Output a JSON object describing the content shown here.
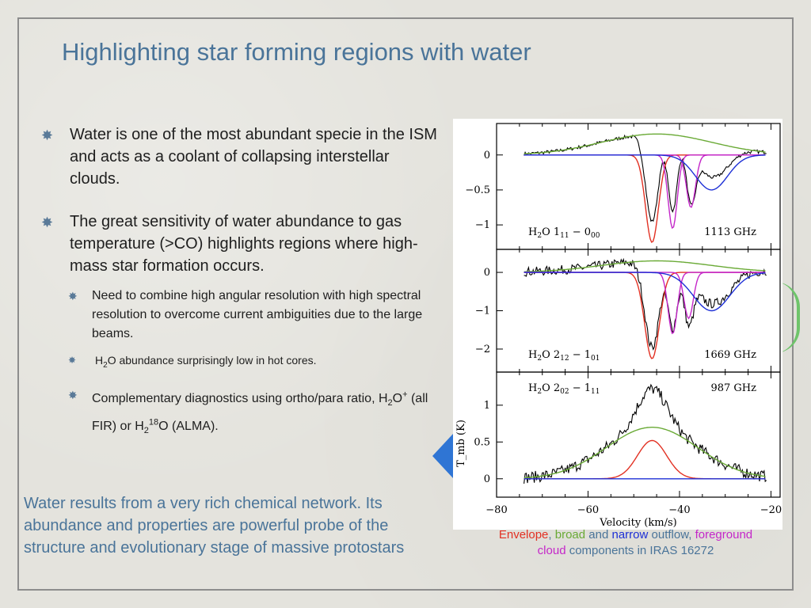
{
  "title": "Highlighting star forming regions with water",
  "bullets": {
    "b1": "Water is one of the most abundant specie in the ISM and acts as a coolant of collapsing interstellar clouds.",
    "b2": "The great sensitivity of water abundance to gas temperature (>CO) highlights regions where high-mass star formation occurs.",
    "b2_1": "Need to combine high angular resolution with high spectral resolution to overcome current ambiguities due to the large beams.",
    "b2_1_1": {
      "h": "H",
      "sub2": "2",
      "rest": "O abundance surprisingly low in hot cores."
    },
    "b2_2": {
      "p1": "Complementary diagnostics using ortho/para ratio, H",
      "sub2": "2",
      "p2": "O",
      "sup": "+",
      "p3": " (all FIR) or H",
      "sub2b": "2",
      "sup18": "18",
      "p4": "O (ALMA)."
    }
  },
  "summary": "Water results from a very rich chemical network. Its abundance and properties are powerful probe of the structure and evolutionary stage of massive protostars",
  "caption": {
    "envelope": "Envelope",
    "comma": ", ",
    "broad": "broad",
    "and": " and ",
    "narrow": "narrow",
    "outflow": " outflow,",
    "fg": "foreground cloud",
    "rest": " components in IRAS 16272"
  },
  "colors": {
    "accent": "#4a7499",
    "envelope": "#e23123",
    "broad": "#6aaa36",
    "narrow": "#1d2fd6",
    "foreground": "#c427c9"
  },
  "chart_data": {
    "type": "line",
    "xlabel": "Velocity (km/s)",
    "ylabel": "T_mb (K)",
    "xlim": [
      -80,
      -18
    ],
    "xticks": [
      "−80",
      "−60",
      "−40",
      "−20"
    ],
    "panels": [
      {
        "line": "H₂O 1₁₁ − 0₀₀",
        "line_label": {
          "base": "H",
          "s1": "2",
          "m": "O 1",
          "s2": "11",
          "dash": " − 0",
          "s3": "00"
        },
        "freq": "1113 GHz",
        "ylim": [
          -1.35,
          0.45
        ],
        "yticks": [
          {
            "v": 0,
            "t": "0"
          },
          {
            "v": -0.5,
            "t": "−0.5"
          },
          {
            "v": -1,
            "t": "−1"
          }
        ],
        "series": [
          {
            "type": "observed",
            "baseline": 0,
            "noise": 0.025
          },
          {
            "color": "#6aaa36",
            "peak": 0.3,
            "center": -45,
            "width": 12
          },
          {
            "color": "#e23123",
            "peak": -1.25,
            "center": -46,
            "width": 1.4
          },
          {
            "color": "#c427c9",
            "peak": -1.05,
            "center": -41.5,
            "width": 1.0
          },
          {
            "color": "#c427c9",
            "peak": -0.75,
            "center": -37.5,
            "width": 1.0
          },
          {
            "color": "#1d2fd6",
            "peak": -0.5,
            "center": -33,
            "width": 3.5
          }
        ]
      },
      {
        "line": "H₂O 2₁₂ − 1₀₁",
        "line_label": {
          "base": "H",
          "s1": "2",
          "m": "O 2",
          "s2": "12",
          "dash": " − 1",
          "s3": "01"
        },
        "freq": "1669 GHz",
        "ylim": [
          -2.6,
          0.6
        ],
        "yticks": [
          {
            "v": 0,
            "t": "0"
          },
          {
            "v": -1,
            "t": "−1"
          },
          {
            "v": -2,
            "t": "−2"
          }
        ],
        "series": [
          {
            "type": "observed",
            "baseline": 0,
            "noise": 0.12
          },
          {
            "color": "#6aaa36",
            "peak": 0.3,
            "center": -45,
            "width": 12
          },
          {
            "color": "#e23123",
            "peak": -2.25,
            "center": -46,
            "width": 1.6
          },
          {
            "color": "#c427c9",
            "peak": -1.6,
            "center": -41.5,
            "width": 1.0
          },
          {
            "color": "#c427c9",
            "peak": -1.2,
            "center": -38,
            "width": 1.0
          },
          {
            "color": "#1d2fd6",
            "peak": -1.0,
            "center": -33,
            "width": 4.0
          }
        ]
      },
      {
        "line": "H₂O 2₀₂ − 1₁₁",
        "line_label": {
          "base": "H",
          "s1": "2",
          "m": "O 2",
          "s2": "02",
          "dash": " − 1",
          "s3": "11"
        },
        "freq": "987 GHz",
        "ylim": [
          -0.25,
          1.45
        ],
        "yticks": [
          {
            "v": 1,
            "t": "1"
          },
          {
            "v": 0.5,
            "t": "0.5"
          },
          {
            "v": 0,
            "t": "0"
          }
        ],
        "series": [
          {
            "type": "observed",
            "baseline": 0,
            "noise": 0.08
          },
          {
            "color": "#6aaa36",
            "peak": 0.7,
            "center": -46,
            "width": 10
          },
          {
            "color": "#e23123",
            "peak": 0.52,
            "center": -46,
            "width": 3.2
          },
          {
            "color": "#1d2fd6",
            "peak": 0.0,
            "center": -33,
            "width": 4.0
          }
        ]
      }
    ]
  }
}
